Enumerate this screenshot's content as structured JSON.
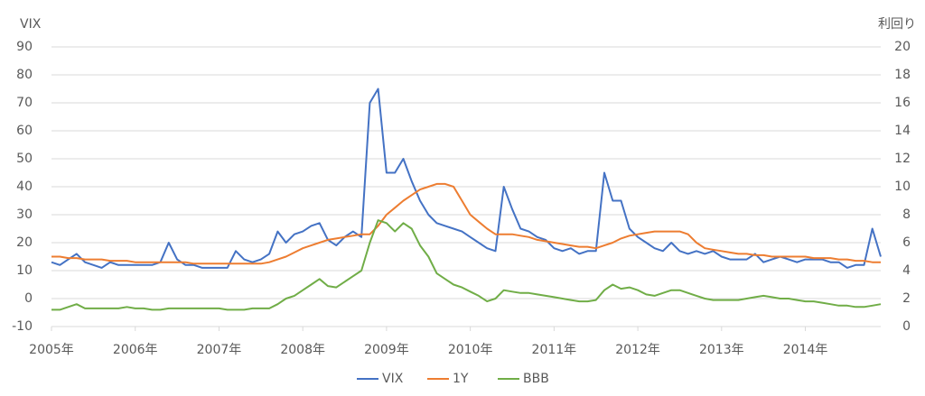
{
  "chart_data": {
    "type": "line",
    "y_label": "VIX",
    "y2_label": "利回り",
    "x": [
      2005,
      2005.1,
      2005.2,
      2005.3,
      2005.4,
      2005.5,
      2005.6,
      2005.7,
      2005.8,
      2005.9,
      2006,
      2006.1,
      2006.2,
      2006.3,
      2006.4,
      2006.5,
      2006.6,
      2006.7,
      2006.8,
      2006.9,
      2007,
      2007.1,
      2007.2,
      2007.3,
      2007.4,
      2007.5,
      2007.6,
      2007.7,
      2007.8,
      2007.9,
      2008,
      2008.1,
      2008.2,
      2008.3,
      2008.4,
      2008.5,
      2008.6,
      2008.7,
      2008.8,
      2008.9,
      2009,
      2009.1,
      2009.2,
      2009.3,
      2009.4,
      2009.5,
      2009.6,
      2009.7,
      2009.8,
      2009.9,
      2010,
      2010.1,
      2010.2,
      2010.3,
      2010.4,
      2010.5,
      2010.6,
      2010.7,
      2010.8,
      2010.9,
      2011,
      2011.1,
      2011.2,
      2011.3,
      2011.4,
      2011.5,
      2011.6,
      2011.7,
      2011.8,
      2011.9,
      2012,
      2012.1,
      2012.2,
      2012.3,
      2012.4,
      2012.5,
      2012.6,
      2012.7,
      2012.8,
      2012.9,
      2013,
      2013.1,
      2013.2,
      2013.3,
      2013.4,
      2013.5,
      2013.6,
      2013.7,
      2013.8,
      2013.9,
      2014,
      2014.1,
      2014.2,
      2014.3,
      2014.4,
      2014.5,
      2014.6,
      2014.7,
      2014.8,
      2014.9
    ],
    "series": [
      {
        "name": "VIX",
        "color": "#4472c4",
        "values": [
          13,
          12,
          14,
          16,
          13,
          12,
          11,
          13,
          12,
          12,
          12,
          12,
          12,
          13,
          20,
          14,
          12,
          12,
          11,
          11,
          11,
          11,
          17,
          14,
          13,
          14,
          16,
          24,
          20,
          23,
          24,
          26,
          27,
          21,
          19,
          22,
          24,
          22,
          70,
          75,
          45,
          45,
          50,
          42,
          35,
          30,
          27,
          26,
          25,
          24,
          22,
          20,
          18,
          17,
          40,
          32,
          25,
          24,
          22,
          21,
          18,
          17,
          18,
          16,
          17,
          17,
          45,
          35,
          35,
          25,
          22,
          20,
          18,
          17,
          20,
          17,
          16,
          17,
          16,
          17,
          15,
          14,
          14,
          14,
          16,
          13,
          14,
          15,
          14,
          13,
          14,
          14,
          14,
          13,
          13,
          11,
          12,
          12,
          25,
          15
        ]
      },
      {
        "name": "1Y",
        "color": "#ed7d31",
        "axis": "y2",
        "values": [
          5.0,
          5.0,
          4.9,
          4.9,
          4.8,
          4.8,
          4.8,
          4.7,
          4.7,
          4.7,
          4.6,
          4.6,
          4.6,
          4.6,
          4.6,
          4.6,
          4.6,
          4.5,
          4.5,
          4.5,
          4.5,
          4.5,
          4.5,
          4.5,
          4.5,
          4.5,
          4.6,
          4.8,
          5.0,
          5.3,
          5.6,
          5.8,
          6.0,
          6.2,
          6.3,
          6.4,
          6.5,
          6.6,
          6.6,
          7.2,
          8.0,
          8.5,
          9.0,
          9.4,
          9.8,
          10.0,
          10.2,
          10.2,
          10.0,
          9.0,
          8.0,
          7.5,
          7.0,
          6.6,
          6.6,
          6.6,
          6.5,
          6.4,
          6.2,
          6.1,
          6.0,
          5.9,
          5.8,
          5.7,
          5.7,
          5.6,
          5.8,
          6.0,
          6.3,
          6.5,
          6.6,
          6.7,
          6.8,
          6.8,
          6.8,
          6.8,
          6.6,
          6.0,
          5.6,
          5.5,
          5.4,
          5.3,
          5.2,
          5.2,
          5.1,
          5.1,
          5.0,
          5.0,
          5.0,
          5.0,
          5.0,
          4.9,
          4.9,
          4.9,
          4.8,
          4.8,
          4.7,
          4.7,
          4.6,
          4.6
        ]
      },
      {
        "name": "BBB",
        "color": "#70ad47",
        "axis": "y2",
        "values": [
          1.2,
          1.2,
          1.4,
          1.6,
          1.3,
          1.3,
          1.3,
          1.3,
          1.3,
          1.4,
          1.3,
          1.3,
          1.2,
          1.2,
          1.3,
          1.3,
          1.3,
          1.3,
          1.3,
          1.3,
          1.3,
          1.2,
          1.2,
          1.2,
          1.3,
          1.3,
          1.3,
          1.6,
          2.0,
          2.2,
          2.6,
          3.0,
          3.4,
          2.9,
          2.8,
          3.2,
          3.6,
          4.0,
          6.0,
          7.6,
          7.4,
          6.8,
          7.4,
          7.0,
          5.8,
          5.0,
          3.8,
          3.4,
          3.0,
          2.8,
          2.5,
          2.2,
          1.8,
          2.0,
          2.6,
          2.5,
          2.4,
          2.4,
          2.3,
          2.2,
          2.1,
          2.0,
          1.9,
          1.8,
          1.8,
          1.9,
          2.6,
          3.0,
          2.7,
          2.8,
          2.6,
          2.3,
          2.2,
          2.4,
          2.6,
          2.6,
          2.4,
          2.2,
          2.0,
          1.9,
          1.9,
          1.9,
          1.9,
          2.0,
          2.1,
          2.2,
          2.1,
          2.0,
          2.0,
          1.9,
          1.8,
          1.8,
          1.7,
          1.6,
          1.5,
          1.5,
          1.4,
          1.4,
          1.5,
          1.6
        ]
      }
    ],
    "xlim": [
      2005,
      2014.9
    ],
    "xticks": [
      {
        "value": 2005,
        "label": "2005年"
      },
      {
        "value": 2006,
        "label": "2006年"
      },
      {
        "value": 2007,
        "label": "2007年"
      },
      {
        "value": 2008,
        "label": "2008年"
      },
      {
        "value": 2009,
        "label": "2009年"
      },
      {
        "value": 2010,
        "label": "2010年"
      },
      {
        "value": 2011,
        "label": "2011年"
      },
      {
        "value": 2012,
        "label": "2012年"
      },
      {
        "value": 2013,
        "label": "2013年"
      },
      {
        "value": 2014,
        "label": "2014年"
      }
    ],
    "ylim": [
      -10,
      90
    ],
    "yticks": [
      -10,
      0,
      10,
      20,
      30,
      40,
      50,
      60,
      70,
      80,
      90
    ],
    "y2lim": [
      0,
      20
    ],
    "y2ticks": [
      0,
      2,
      4,
      6,
      8,
      10,
      12,
      14,
      16,
      18,
      20
    ],
    "grid": true,
    "legend": "bottom"
  }
}
